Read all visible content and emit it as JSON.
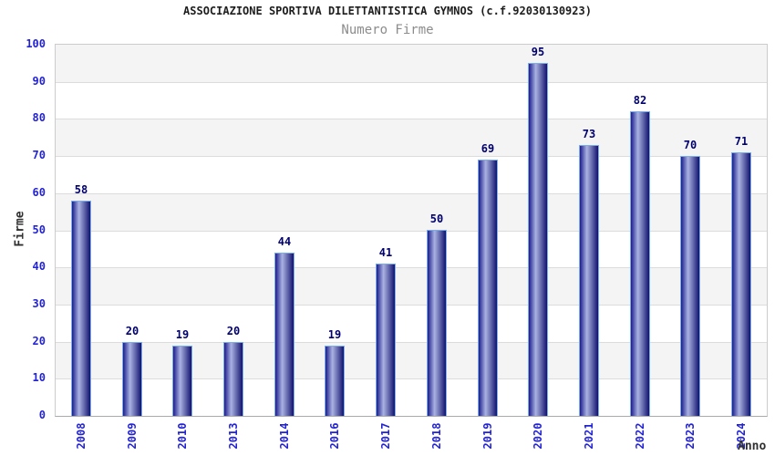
{
  "header": {
    "title": "ASSOCIAZIONE SPORTIVA DILETTANTISTICA GYMNOS (c.f.92030130923)",
    "subtitle": "Numero Firme"
  },
  "chart_data": {
    "type": "bar",
    "title": "ASSOCIAZIONE SPORTIVA DILETTANTISTICA GYMNOS (c.f.92030130923)",
    "subtitle": "Numero Firme",
    "categories": [
      "2008",
      "2009",
      "2010",
      "2013",
      "2014",
      "2016",
      "2017",
      "2018",
      "2019",
      "2020",
      "2021",
      "2022",
      "2023",
      "2024"
    ],
    "values": [
      58,
      20,
      19,
      20,
      44,
      19,
      41,
      50,
      69,
      95,
      73,
      82,
      70,
      71
    ],
    "xlabel": "Anno",
    "ylabel": "Firme",
    "ylim": [
      0,
      100
    ],
    "yticks": [
      0,
      10,
      20,
      30,
      40,
      50,
      60,
      70,
      80,
      90,
      100
    ],
    "grid": true,
    "legend": "none",
    "background_bands": "alternating gray/white horizontal bands"
  },
  "colors": {
    "title_text": "#1d1d1d",
    "subtitle_text": "#8c8c8c",
    "tick_label": "#2323d6",
    "value_label": "#00006e",
    "axis_title_text": "#303030",
    "band_gray": "#f4f4f4",
    "band_white": "#ffffff",
    "gridline": "#dcdcdc",
    "plot_border": "#cccccc",
    "axis_line": "#aaaaaa",
    "bar_edge_dark": "#1c1c8c",
    "bar_highlight": "#aab3e2",
    "bar_end_dark": "#12126f",
    "bar_border_light": "#7aaee8"
  }
}
